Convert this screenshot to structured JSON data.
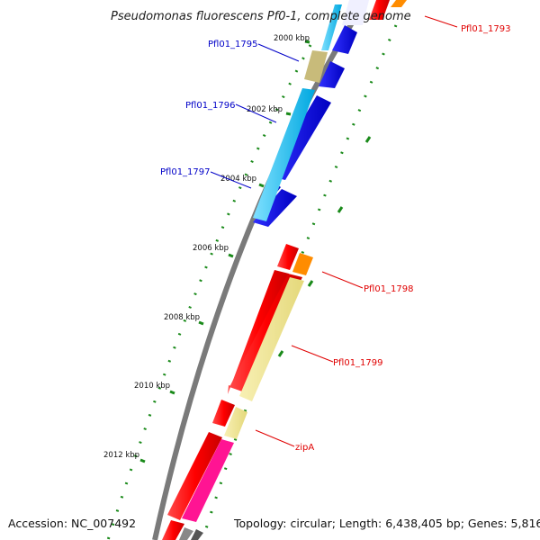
{
  "title": "Pseudomonas fluorescens Pf0-1, complete genome",
  "footer": {
    "accession": "Accession: NC_007492",
    "summary": "Topology: circular; Length: 6,438,405 bp; Genes: 5,816"
  },
  "scale_labels": [
    "2000 kbp",
    "2002 kbp",
    "2004 kbp",
    "2006 kbp",
    "2008 kbp",
    "2010 kbp",
    "2012 kbp"
  ],
  "gene_labels": [
    "Pfl01_1793",
    "Pfl01_1795",
    "Pfl01_1796",
    "Pfl01_1797",
    "Pfl01_1798",
    "Pfl01_1799",
    "zipA"
  ],
  "colors": {
    "backbone": "#808080",
    "tick": "#1a8a1a",
    "label_blue": "#0000c8",
    "label_red": "#e00000",
    "red_gene": "#ff0000",
    "blue_gene": "#0000ee",
    "cyan_gene": "#33ccff",
    "olive_gene": "#c8bb7a",
    "orange_gene": "#ff8c00",
    "khaki_gene": "#f0e68c",
    "magenta_gene": "#ff1493"
  }
}
